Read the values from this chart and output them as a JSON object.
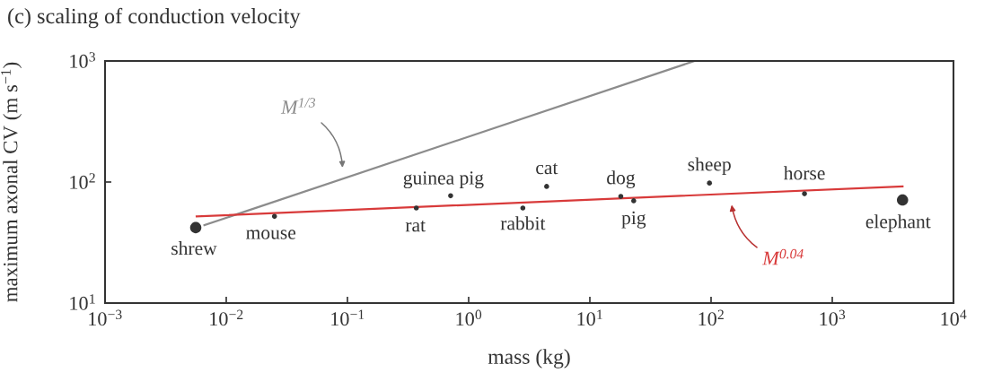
{
  "chart_data": {
    "type": "bubble",
    "title": "(c) scaling of conduction velocity",
    "xlabel": "mass (kg)",
    "ylabel": "maximum axonal CV (m s$^{−1}$)",
    "log": "xy",
    "xlim": [
      0.001,
      10000
    ],
    "ylim": [
      10,
      1000
    ],
    "xticks": [
      {
        "value": 0.001,
        "label": "10$^{−3}$"
      },
      {
        "value": 0.01,
        "label": "10$^{−2}$"
      },
      {
        "value": 0.1,
        "label": "10$^{−1}$"
      },
      {
        "value": 1,
        "label": "10$^{0}$"
      },
      {
        "value": 10,
        "label": "10$^{1}$"
      },
      {
        "value": 100,
        "label": "10$^{2}$"
      },
      {
        "value": 1000,
        "label": "10$^{3}$"
      },
      {
        "value": 10000,
        "label": "10$^{4}$"
      }
    ],
    "yticks": [
      {
        "value": 10,
        "label": "10$^{1}$"
      },
      {
        "value": 100,
        "label": "10$^{2}$"
      },
      {
        "value": 1000,
        "label": "10$^{3}$"
      }
    ],
    "series": [
      {
        "color": "#333333",
        "x": [
          0.0056,
          0.025,
          0.37,
          0.71,
          2.8,
          4.4,
          18,
          23,
          97,
          590,
          3800
        ],
        "values": [
          42,
          52,
          61,
          77,
          61,
          92,
          76,
          70,
          98,
          80,
          71
        ],
        "sizes": [
          1,
          0.2,
          0.2,
          0.2,
          0.2,
          0.2,
          0.2,
          0.2,
          0.2,
          0.2,
          1
        ]
      },
      {
        "type": "line",
        "name": "M$^{1/3}$",
        "color": "#8c8c8c",
        "x": [
          0.0066,
          73
        ],
        "values": [
          44,
          1000
        ]
      },
      {
        "type": "line",
        "name": "M$^{0.04}$",
        "color": "#d83a3a",
        "x": [
          0.0057,
          3800
        ],
        "values": [
          52,
          92
        ]
      }
    ],
    "annotations": [
      {
        "text": "shrew",
        "x": 0.0056,
        "y": 42
      },
      {
        "text": "mouse",
        "x": 0.025,
        "y": 52
      },
      {
        "text": "rat",
        "x": 0.37,
        "y": 61
      },
      {
        "text": "guinea pig",
        "x": 0.71,
        "y": 77
      },
      {
        "text": "rabbit",
        "x": 2.8,
        "y": 61
      },
      {
        "text": "cat",
        "x": 4.4,
        "y": 92
      },
      {
        "text": "dog",
        "x": 18,
        "y": 76
      },
      {
        "text": "pig",
        "x": 23,
        "y": 70
      },
      {
        "text": "sheep",
        "x": 97,
        "y": 98
      },
      {
        "text": "horse",
        "x": 590,
        "y": 80
      },
      {
        "text": "elephant",
        "x": 3800,
        "y": 71
      }
    ]
  }
}
